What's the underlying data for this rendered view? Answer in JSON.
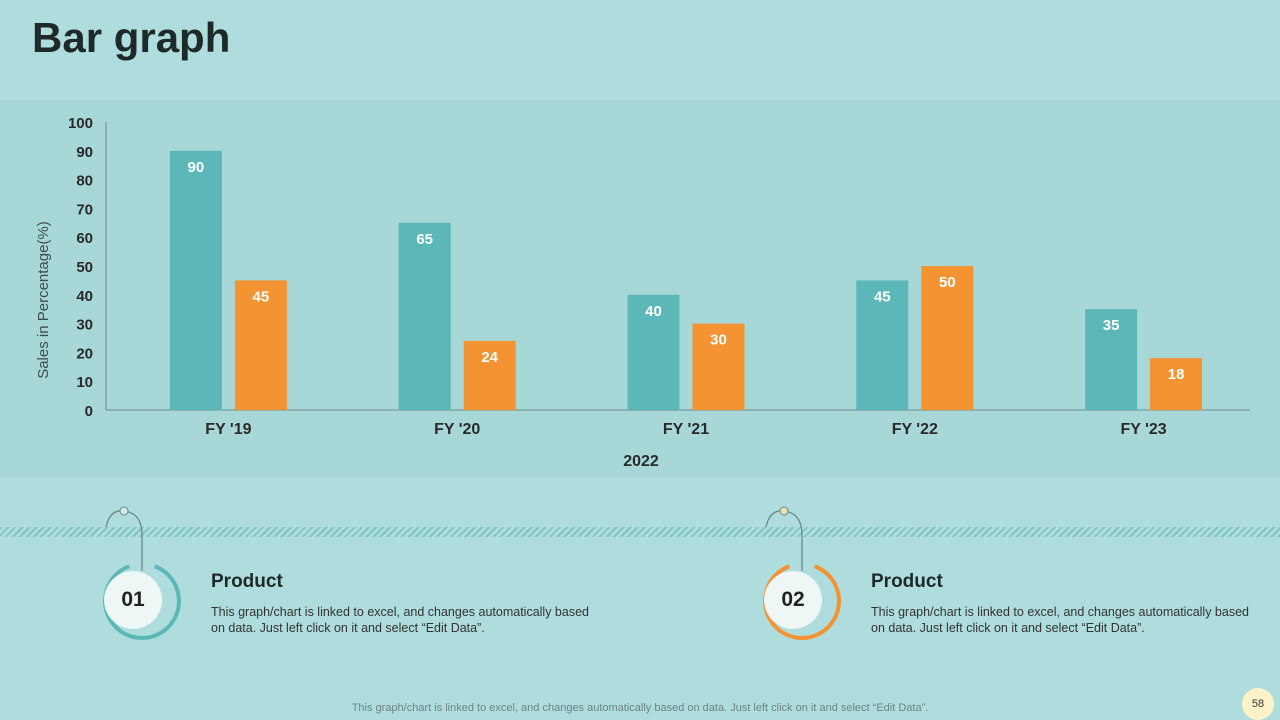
{
  "title": "Bar graph",
  "chart_data": {
    "type": "bar",
    "categories": [
      "FY '19",
      "FY '20",
      "FY '21",
      "FY '22",
      "FY '23"
    ],
    "series": [
      {
        "values": [
          90,
          65,
          40,
          45,
          35
        ],
        "color": "#5cb8b8"
      },
      {
        "values": [
          45,
          24,
          30,
          50,
          18
        ],
        "color": "#f39332"
      }
    ],
    "xlabel": "2022",
    "ylabel": "Sales in Percentage(%)",
    "ylim": [
      0,
      100
    ],
    "yticks": [
      0,
      10,
      20,
      30,
      40,
      50,
      60,
      70,
      80,
      90,
      100
    ],
    "grid": false,
    "data_labels": true
  },
  "cards": [
    {
      "number": "01",
      "title": "Product",
      "description": "This graph/chart is linked to excel, and changes automatically based on data. Just left click on it and select “Edit Data”.",
      "color": "#5cb8b8"
    },
    {
      "number": "02",
      "title": "Product",
      "description": "This graph/chart is linked to excel, and changes automatically based on data. Just left click on it and select “Edit Data”.",
      "color": "#f39332"
    }
  ],
  "footer": "This graph/chart is linked to excel, and changes automatically based on data. Just left click on it and select “Edit Data”.",
  "page_number": "58"
}
